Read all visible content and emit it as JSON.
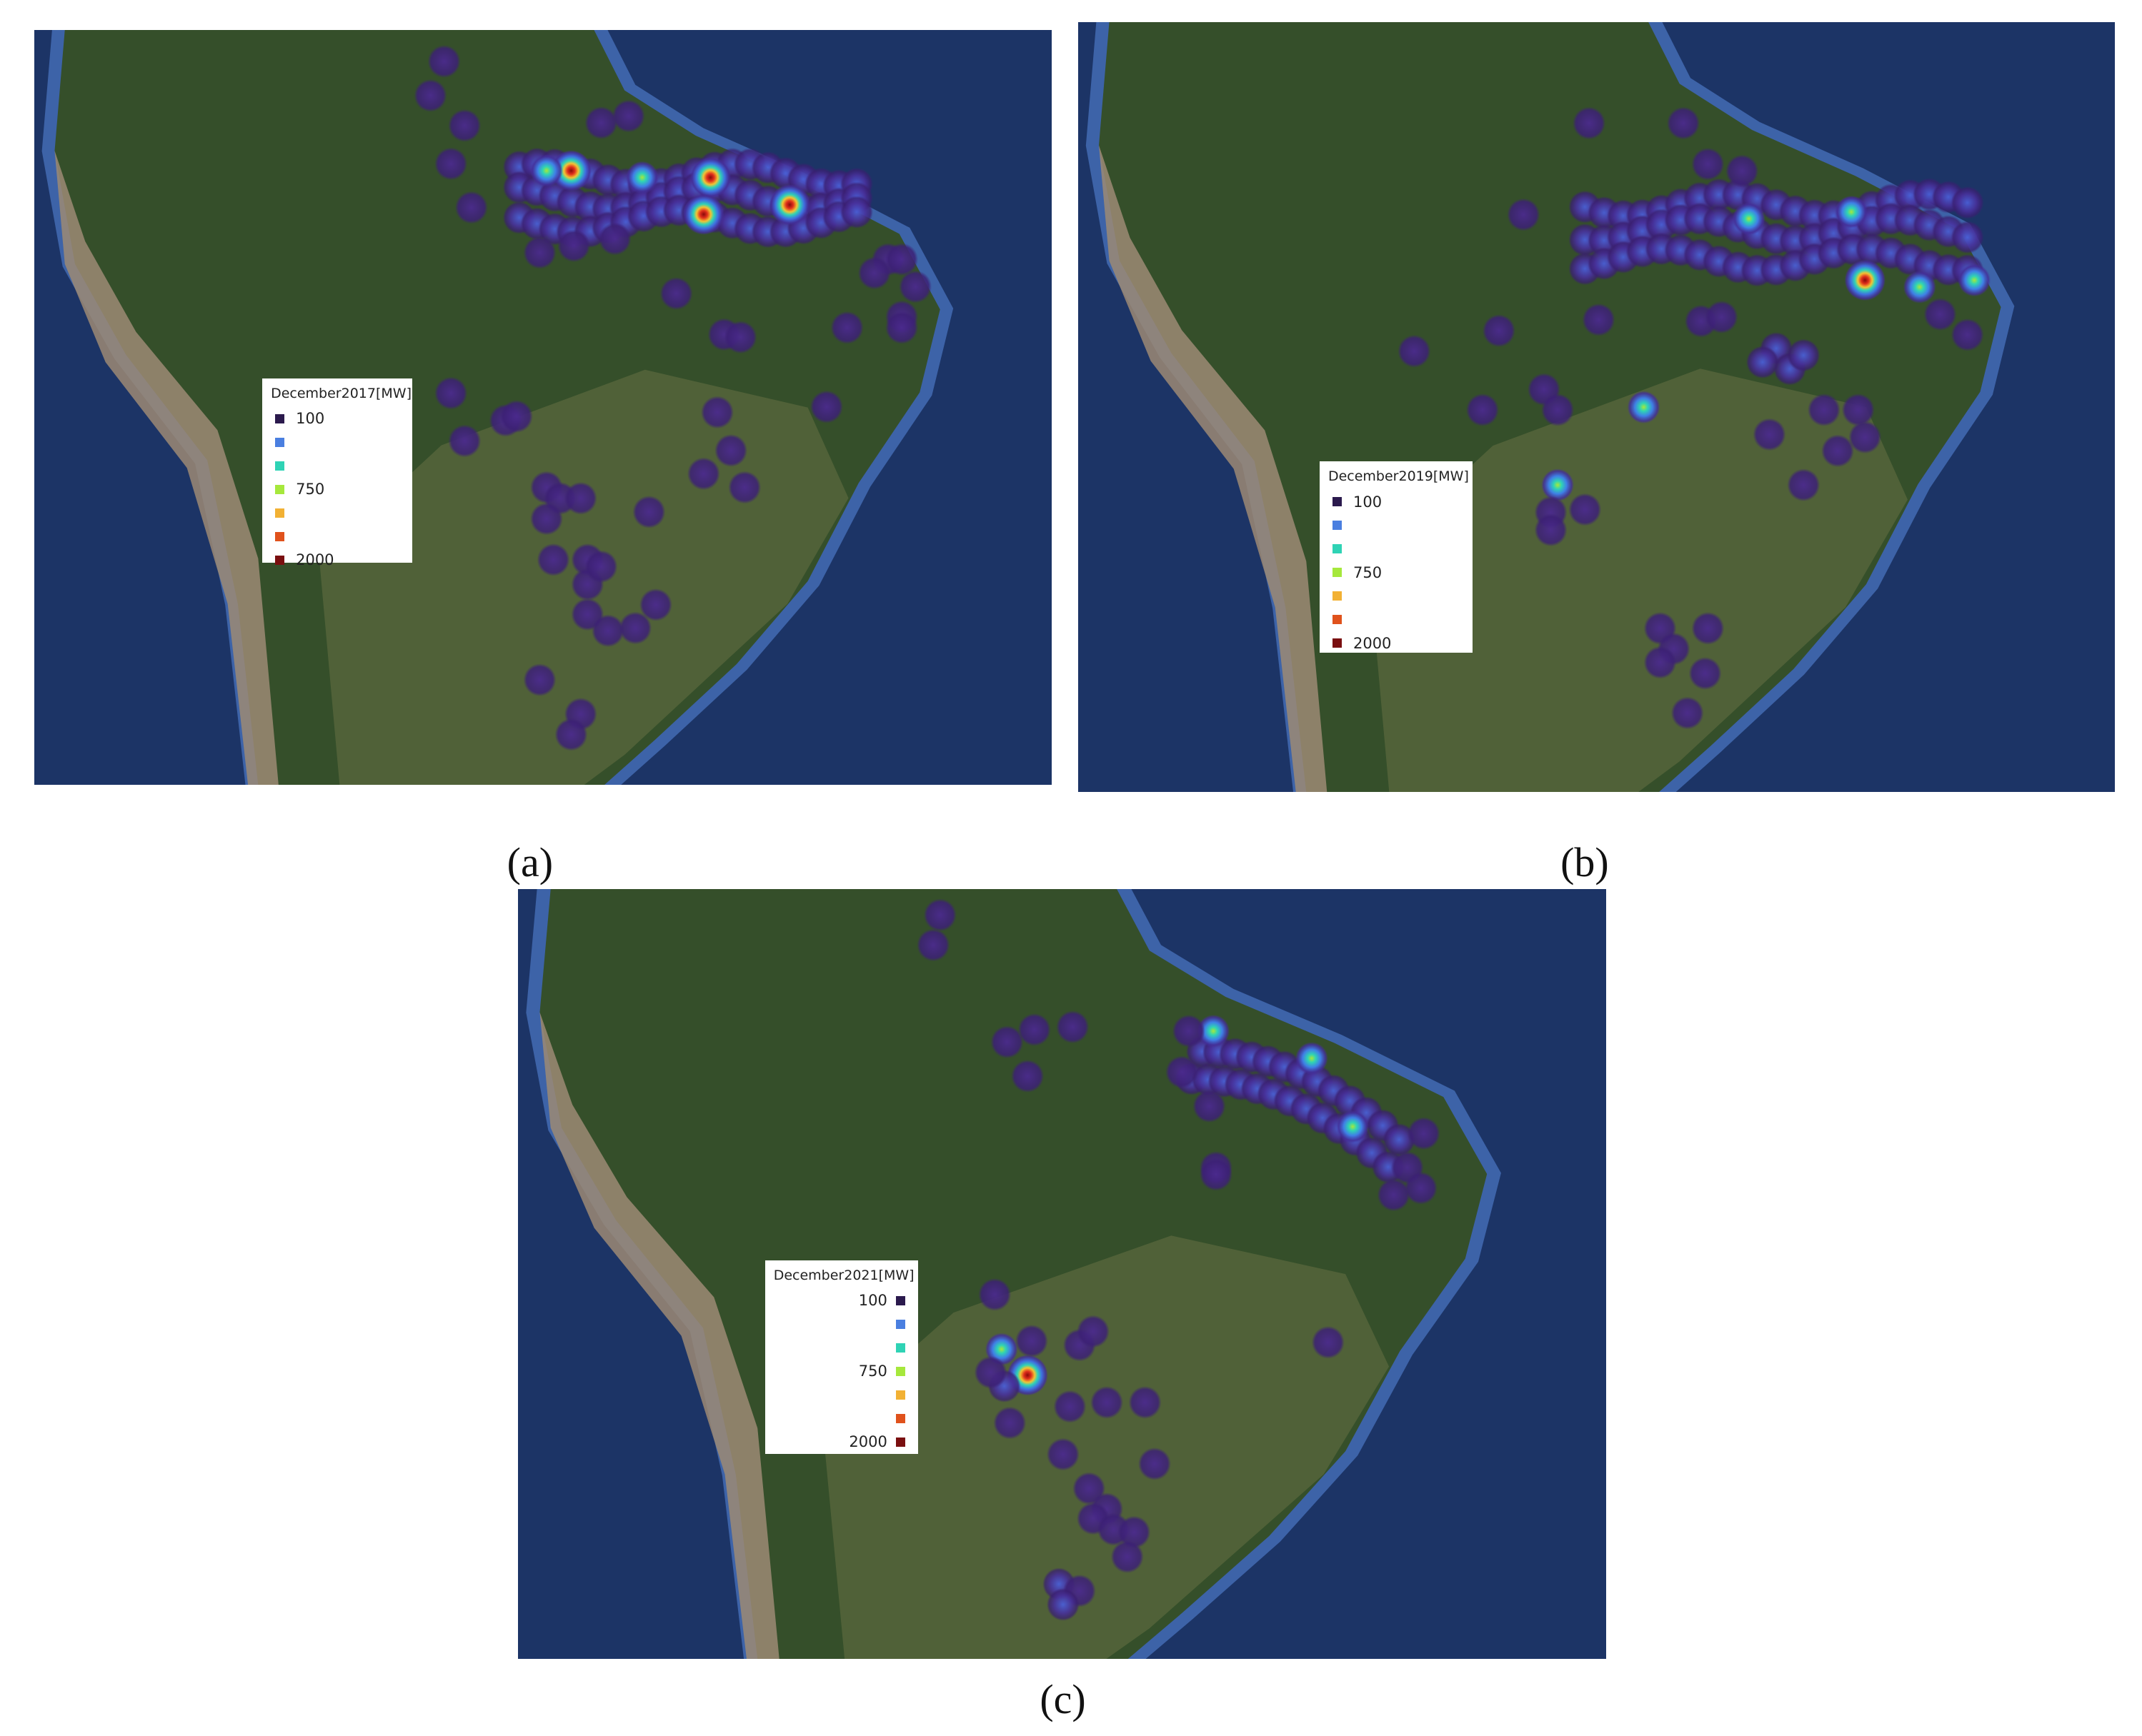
{
  "panels": [
    {
      "label": "(a)",
      "legend": {
        "title": "December2017[MW]",
        "entries": [
          {
            "color": "#2b1a4d",
            "label": "100"
          },
          {
            "color": "#4a7fe0"
          },
          {
            "color": "#2fd3b5"
          },
          {
            "color": "#a6e83c",
            "label": "750"
          },
          {
            "color": "#f2b134"
          },
          {
            "color": "#e0521c"
          },
          {
            "color": "#7a0f10",
            "label": "2000"
          }
        ]
      }
    },
    {
      "label": "(b)",
      "legend": {
        "title": "December2019[MW]",
        "entries": [
          {
            "color": "#2b1a4d",
            "label": "100"
          },
          {
            "color": "#4a7fe0"
          },
          {
            "color": "#2fd3b5"
          },
          {
            "color": "#a6e83c",
            "label": "750"
          },
          {
            "color": "#f2b134"
          },
          {
            "color": "#e0521c"
          },
          {
            "color": "#7a0f10",
            "label": "2000"
          }
        ]
      }
    },
    {
      "label": "(c)",
      "legend": {
        "title": "December2021[MW]",
        "entries": [
          {
            "color": "#2b1a4d",
            "label": "100"
          },
          {
            "color": "#4a7fe0"
          },
          {
            "color": "#2fd3b5"
          },
          {
            "color": "#a6e83c",
            "label": "750"
          },
          {
            "color": "#f2b134"
          },
          {
            "color": "#e0521c"
          },
          {
            "color": "#7a0f10",
            "label": "2000"
          }
        ]
      }
    }
  ]
}
